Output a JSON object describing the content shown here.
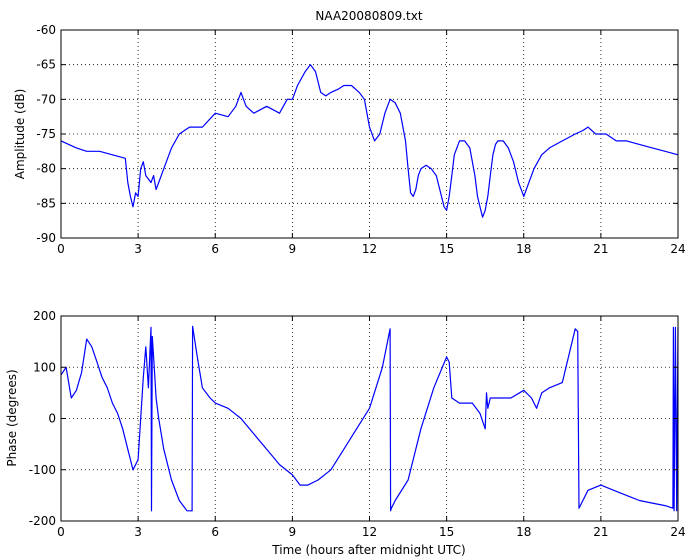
{
  "figure": {
    "title": "NAA20080809.txt",
    "xlabel": "Time (hours after midnight UTC)"
  },
  "chart_data": [
    {
      "type": "line",
      "title": "NAA20080809.txt",
      "xlabel": "",
      "ylabel": "Amplitude (dB)",
      "xlim": [
        0,
        24
      ],
      "ylim": [
        -90,
        -60
      ],
      "xticks": [
        0,
        3,
        6,
        9,
        12,
        15,
        18,
        21,
        24
      ],
      "yticks": [
        -90,
        -85,
        -80,
        -75,
        -70,
        -65,
        -60
      ],
      "grid": true,
      "color": "#0000ff",
      "series": [
        {
          "x": [
            0,
            0.3,
            0.6,
            1.0,
            1.5,
            2.0,
            2.5,
            2.6,
            2.7,
            2.8,
            2.9,
            3.0,
            3.1,
            3.2,
            3.3,
            3.5,
            3.6,
            3.7,
            3.8,
            4.0,
            4.3,
            4.6,
            5.0,
            5.5,
            6.0,
            6.5,
            6.8,
            7.0,
            7.2,
            7.5,
            8.0,
            8.5,
            8.8,
            9.0,
            9.2,
            9.5,
            9.7,
            9.9,
            10.1,
            10.3,
            10.5,
            10.8,
            11.0,
            11.3,
            11.6,
            11.8,
            12.0,
            12.2,
            12.4,
            12.6,
            12.8,
            13.0,
            13.2,
            13.4,
            13.5,
            13.6,
            13.7,
            13.8,
            13.9,
            14.0,
            14.2,
            14.4,
            14.6,
            14.8,
            14.9,
            15.0,
            15.1,
            15.2,
            15.3,
            15.5,
            15.7,
            15.9,
            16.1,
            16.2,
            16.3,
            16.4,
            16.5,
            16.6,
            16.7,
            16.8,
            16.9,
            17.0,
            17.2,
            17.4,
            17.6,
            17.8,
            18.0,
            18.1,
            18.2,
            18.4,
            18.7,
            19.0,
            19.5,
            20.0,
            20.3,
            20.5,
            20.8,
            21.2,
            21.6,
            22.0,
            22.5,
            23.0,
            23.5,
            24.0
          ],
          "y": [
            -76,
            -76.5,
            -77,
            -77.5,
            -77.5,
            -78,
            -78.5,
            -82,
            -84,
            -85.5,
            -83.5,
            -84,
            -80,
            -79,
            -81,
            -82,
            -81,
            -83,
            -82,
            -80,
            -77,
            -75,
            -74,
            -74,
            -72,
            -72.5,
            -71,
            -69,
            -71,
            -72,
            -71,
            -72,
            -70,
            -70,
            -68,
            -66,
            -65,
            -66,
            -69,
            -69.5,
            -69,
            -68.5,
            -68,
            -68,
            -69,
            -70,
            -74,
            -76,
            -75,
            -72,
            -70,
            -70.5,
            -72,
            -76,
            -80,
            -83.5,
            -84,
            -83,
            -81,
            -80,
            -79.5,
            -80,
            -81,
            -84,
            -85.5,
            -86,
            -84,
            -81,
            -78,
            -76,
            -76,
            -77,
            -81,
            -84,
            -85.5,
            -87,
            -86,
            -84,
            -81,
            -78,
            -76.5,
            -76,
            -76,
            -77,
            -79,
            -82,
            -84,
            -83,
            -82,
            -80,
            -78,
            -77,
            -76,
            -75,
            -74.5,
            -74,
            -75,
            -75,
            -76,
            -76,
            -76.5,
            -77,
            -77.5,
            -78
          ]
        }
      ]
    },
    {
      "type": "line",
      "title": "",
      "xlabel": "Time (hours after midnight UTC)",
      "ylabel": "Phase (degrees)",
      "xlim": [
        0,
        24
      ],
      "ylim": [
        -200,
        200
      ],
      "xticks": [
        0,
        3,
        6,
        9,
        12,
        15,
        18,
        21,
        24
      ],
      "yticks": [
        -200,
        -100,
        0,
        100,
        200
      ],
      "grid": true,
      "color": "#0000ff",
      "series": [
        {
          "x": [
            0,
            0.2,
            0.4,
            0.6,
            0.8,
            1.0,
            1.2,
            1.4,
            1.6,
            1.8,
            2.0,
            2.2,
            2.4,
            2.6,
            2.7,
            2.8,
            2.9,
            3.0,
            3.1,
            3.2,
            3.3,
            3.4,
            3.5,
            3.52,
            3.55,
            3.6,
            3.7,
            3.8,
            4.0,
            4.3,
            4.6,
            4.9,
            5.1,
            5.12,
            5.15,
            5.3,
            5.5,
            5.8,
            6.0,
            6.5,
            7.0,
            7.5,
            8.0,
            8.5,
            9.0,
            9.3,
            9.6,
            10.0,
            10.5,
            11.0,
            11.5,
            12.0,
            12.5,
            12.8,
            12.82,
            12.85,
            13.0,
            13.5,
            14.0,
            14.5,
            15.0,
            15.1,
            15.2,
            15.5,
            16.0,
            16.3,
            16.5,
            16.55,
            16.6,
            16.7,
            17.0,
            17.5,
            18.0,
            18.3,
            18.5,
            18.7,
            19.0,
            19.5,
            20.0,
            20.1,
            20.15,
            20.2,
            20.5,
            21.0,
            21.5,
            22.0,
            22.5,
            23.0,
            23.5,
            23.8,
            23.82,
            23.85,
            23.9,
            23.95,
            24.0
          ],
          "y": [
            85,
            100,
            40,
            55,
            90,
            155,
            140,
            110,
            80,
            60,
            30,
            10,
            -20,
            -60,
            -80,
            -100,
            -90,
            -80,
            0,
            80,
            140,
            60,
            178,
            -180,
            160,
            120,
            40,
            0,
            -60,
            -120,
            -160,
            -180,
            -180,
            180,
            170,
            120,
            60,
            40,
            30,
            20,
            0,
            -30,
            -60,
            -90,
            -110,
            -130,
            -130,
            -120,
            -100,
            -60,
            -20,
            20,
            100,
            175,
            -180,
            -175,
            -160,
            -120,
            -20,
            60,
            120,
            110,
            40,
            30,
            30,
            10,
            -20,
            50,
            20,
            40,
            40,
            40,
            55,
            40,
            20,
            50,
            60,
            70,
            175,
            170,
            -175,
            -170,
            -140,
            -130,
            -140,
            -150,
            -160,
            -165,
            -170,
            -175,
            178,
            -180,
            178,
            -180,
            178
          ]
        }
      ]
    }
  ]
}
